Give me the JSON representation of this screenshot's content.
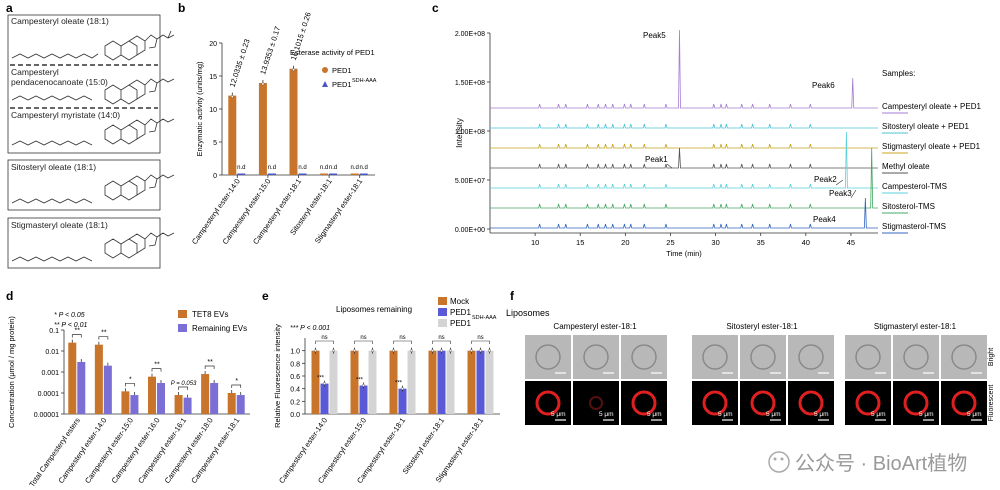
{
  "panels": {
    "a": "a",
    "b": "b",
    "c": "c",
    "d": "d",
    "e": "e",
    "f": "f"
  },
  "panel_a": {
    "structures": [
      "Campesteryl oleate (18:1)",
      "Campesteryl",
      "pendacenocanoate (15:0)",
      "Campesteryl myristate (14:0)",
      "Sitosteryl oleate (18:1)",
      "Stigmasteryl oleate (18:1)"
    ]
  },
  "chart_data": [
    {
      "id": "b",
      "type": "bar",
      "title": "Esterase activity of PED1",
      "ylabel": "Enzymatic activity (units/mg)",
      "ylim": [
        0,
        20
      ],
      "yticks": [
        "0",
        "5",
        "10",
        "15",
        "20"
      ],
      "categories": [
        "Campesteryl ester-14:0",
        "Campesteryl ester-15:0",
        "Campesteryl ester-18:1",
        "Sitosteryl ester-18:1",
        "Stigmasteryl ester-18:1"
      ],
      "series": [
        {
          "name": "PED1",
          "color": "#c8742a",
          "values": [
            12.03,
            13.94,
            16.1,
            0,
            0
          ]
        },
        {
          "name": "PED1",
          "sup": "SDH-AAA",
          "color": "#4a55c8",
          "values": [
            0,
            0,
            0,
            0,
            0
          ]
        }
      ],
      "value_labels": [
        "12.0335 ± 0.23",
        "13.9353 ± 0.17",
        "16.1015 ± 0.26"
      ],
      "nd_label": "n.d"
    },
    {
      "id": "c",
      "type": "line",
      "xlabel": "Time (min)",
      "ylabel": "Intensity",
      "xlim": [
        5,
        48
      ],
      "xticks": [
        "10",
        "15",
        "20",
        "25",
        "30",
        "35",
        "40",
        "45"
      ],
      "yticks": [
        "0.00E+00",
        "5.00E+07",
        "1.00E+08",
        "1.50E+08",
        "2.00E+08"
      ],
      "legend_title": "Samples:",
      "series": [
        {
          "name": "Campesteryl oleate + PED1",
          "color": "#a57ed2"
        },
        {
          "name": "Sitosteryl oleate + PED1",
          "color": "#4cc3d6"
        },
        {
          "name": "Stigmasteryl oleate + PED1",
          "color": "#c8a41e"
        },
        {
          "name": "Methyl oleate",
          "color": "#555555"
        },
        {
          "name": "Campesterol-TMS",
          "color": "#5ad0dd"
        },
        {
          "name": "Sitosterol-TMS",
          "color": "#45a765"
        },
        {
          "name": "Stigmasterol-TMS",
          "color": "#3366c0"
        }
      ],
      "peak_labels": [
        "Peak5",
        "Peak6",
        "Peak1",
        "Peak2",
        "Peak3",
        "Peak4"
      ]
    },
    {
      "id": "d",
      "type": "bar",
      "ylabel": "Concentration (μmol / mg protein)",
      "yscale": "log",
      "yticks": [
        "0.1",
        "0.01",
        "0.001",
        "0.0001",
        "0.00001"
      ],
      "categories": [
        "Total Campesteryl esters",
        "Campesteryl ester-14:0",
        "Campesteryl ester-15:0",
        "Campesteryl ester-16:0",
        "Campesteryl ester-16:1",
        "Campesteryl ester-18:0",
        "Campesteryl ester-18:1"
      ],
      "series": [
        {
          "name": "TET8 EVs",
          "color": "#c8742a",
          "values": [
            0.025,
            0.02,
            0.00012,
            0.0006,
            8e-05,
            0.0008,
            0.0001
          ]
        },
        {
          "name": "Remaining EVs",
          "color": "#7b6fd6",
          "values": [
            0.003,
            0.002,
            8e-05,
            0.0003,
            6e-05,
            0.0003,
            8e-05
          ]
        }
      ],
      "significance": [
        "**",
        "**",
        "*",
        "**",
        "P = 0.053",
        "**",
        "*"
      ],
      "legend_notes": [
        "* P < 0.05",
        "** P < 0.01"
      ]
    },
    {
      "id": "e",
      "type": "bar",
      "title": "Liposomes remaining",
      "ylabel": "Relative Fluorescence intensity",
      "ylim": [
        0,
        1.2
      ],
      "yticks": [
        "0.0",
        "0.2",
        "0.4",
        "0.6",
        "0.8",
        "1.0"
      ],
      "categories": [
        "Campesteryl ester-14:0",
        "Campesteryl ester-15:0",
        "Campesteryl ester-18:1",
        "Sitosteryl ester-18:1",
        "Stigmasteryl ester-18:1"
      ],
      "series": [
        {
          "name": "Mock",
          "color": "#c8742a",
          "values": [
            1,
            1,
            1,
            1,
            1
          ]
        },
        {
          "name": "PED1",
          "color": "#5a5ad6",
          "values": [
            0.48,
            0.45,
            0.4,
            1,
            1
          ]
        },
        {
          "name": "PED1",
          "sup": "SDH-AAA",
          "color": "#d4d4d4",
          "values": [
            1,
            1,
            1,
            1,
            1
          ]
        }
      ],
      "stars": "***",
      "ns_label": "ns",
      "note": "*** P < 0.001"
    }
  ],
  "panel_f": {
    "title": "Liposomes",
    "groups": [
      "Campesteryl ester-18:1",
      "Sitosteryl ester-18:1",
      "Stigmasteryl ester-18:1"
    ],
    "row_labels": [
      "Bright",
      "Fluorescent"
    ],
    "scale_label": "5 μm"
  },
  "watermark": "公众号 · BioArt植物"
}
